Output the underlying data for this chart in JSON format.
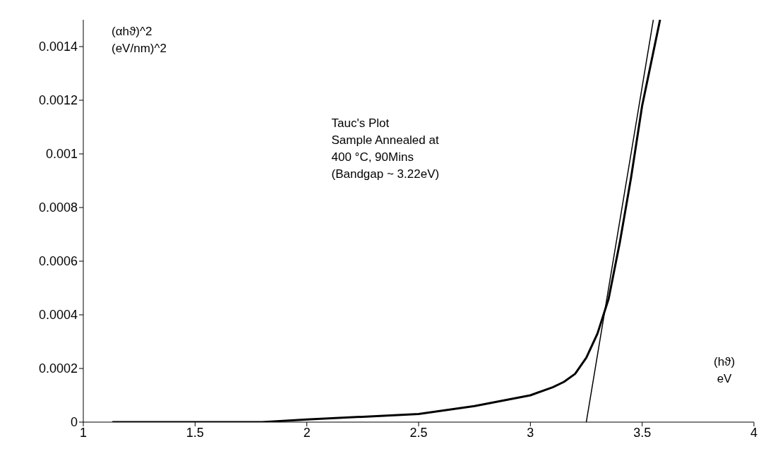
{
  "chart_data": {
    "type": "line",
    "title": "Tauc's Plot",
    "annotations": [
      "Sample Annealed at",
      "400 °C, 90Mins",
      "(Bandgap ~ 3.22eV)"
    ],
    "ylabel": "(αhϑ)^2\n(eV/nm)^2",
    "xlabel": "(hϑ)\neV",
    "xlim": [
      1,
      4
    ],
    "xticks": [
      1,
      1.5,
      2,
      2.5,
      3,
      3.5,
      4
    ],
    "ylim": [
      0,
      0.0015
    ],
    "yticks": [
      0,
      0.0002,
      0.0004,
      0.0006,
      0.0008,
      0.001,
      0.0012,
      0.0014
    ],
    "grid": false,
    "marker": "none",
    "line_style": "solid",
    "series": [
      {
        "color": "#000000",
        "x": [
          1.13,
          1.5,
          1.8,
          2,
          2.25,
          2.5,
          2.75,
          3,
          3.1,
          3.15,
          3.2,
          3.25,
          3.3,
          3.35,
          3.4,
          3.45,
          3.5,
          3.55,
          3.58
        ],
        "values": [
          0,
          0,
          0,
          1e-05,
          2e-05,
          3e-05,
          6e-05,
          0.0001,
          0.00013,
          0.00015,
          0.00018,
          0.00024,
          0.00033,
          0.00046,
          0.00067,
          0.00091,
          0.00118,
          0.00138,
          0.0015
        ]
      },
      {
        "type": "line",
        "color": "#000000",
        "x": [
          3.25,
          3.55
        ],
        "values": [
          0,
          0.0015
        ]
      }
    ]
  }
}
